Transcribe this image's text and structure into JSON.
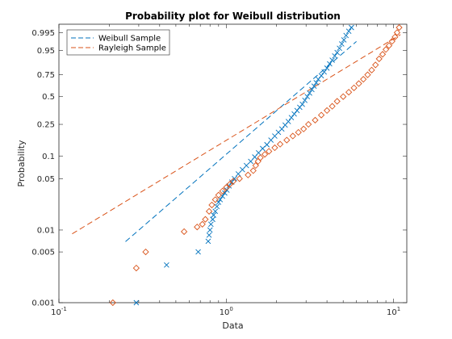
{
  "chart_data": {
    "type": "scatter",
    "title": "Probability plot for Weibull distribution",
    "xlabel": "Data",
    "ylabel": "Probability",
    "x_scale": "log",
    "y_scale": "weibull-probability",
    "xlim": [
      0.1,
      12
    ],
    "ylim": [
      0.001,
      0.999
    ],
    "x_ticks": [
      {
        "value": 0.1,
        "base": "10",
        "exp": "-1"
      },
      {
        "value": 1,
        "base": "10",
        "exp": "0"
      },
      {
        "value": 10,
        "base": "10",
        "exp": "1"
      }
    ],
    "y_ticks": [
      {
        "value": 0.001,
        "label": "0.001"
      },
      {
        "value": 0.005,
        "label": "0.005"
      },
      {
        "value": 0.01,
        "label": "0.01"
      },
      {
        "value": 0.05,
        "label": "0.05"
      },
      {
        "value": 0.1,
        "label": "0.1"
      },
      {
        "value": 0.25,
        "label": "0.25"
      },
      {
        "value": 0.5,
        "label": "0.5"
      },
      {
        "value": 0.75,
        "label": "0.75"
      },
      {
        "value": 0.95,
        "label": "0.95"
      },
      {
        "value": 0.995,
        "label": "0.995"
      }
    ],
    "legend_position": "top-left",
    "grid": false,
    "series": [
      {
        "name": "Weibull Sample",
        "color": "#0072BD",
        "marker": "x",
        "fit_line": {
          "scale": 3.0,
          "shape": 2.0,
          "x_range": [
            0.25,
            6.0
          ]
        },
        "points": [
          [
            0.29,
            0.001
          ],
          [
            0.44,
            0.0033
          ],
          [
            0.68,
            0.005
          ],
          [
            0.78,
            0.007
          ],
          [
            0.79,
            0.0085
          ],
          [
            0.8,
            0.01
          ],
          [
            0.81,
            0.012
          ],
          [
            0.83,
            0.014
          ],
          [
            0.84,
            0.016
          ],
          [
            0.86,
            0.018
          ],
          [
            0.88,
            0.021
          ],
          [
            0.9,
            0.024
          ],
          [
            0.92,
            0.026
          ],
          [
            0.95,
            0.029
          ],
          [
            0.98,
            0.032
          ],
          [
            1.01,
            0.035
          ],
          [
            1.04,
            0.04
          ],
          [
            1.08,
            0.045
          ],
          [
            1.12,
            0.05
          ],
          [
            1.18,
            0.058
          ],
          [
            1.25,
            0.066
          ],
          [
            1.32,
            0.075
          ],
          [
            1.4,
            0.085
          ],
          [
            1.48,
            0.097
          ],
          [
            1.56,
            0.11
          ],
          [
            1.65,
            0.125
          ],
          [
            1.75,
            0.14
          ],
          [
            1.85,
            0.16
          ],
          [
            1.95,
            0.18
          ],
          [
            2.05,
            0.2
          ],
          [
            2.15,
            0.22
          ],
          [
            2.25,
            0.245
          ],
          [
            2.35,
            0.27
          ],
          [
            2.45,
            0.3
          ],
          [
            2.55,
            0.33
          ],
          [
            2.65,
            0.36
          ],
          [
            2.75,
            0.39
          ],
          [
            2.85,
            0.42
          ],
          [
            2.95,
            0.46
          ],
          [
            3.05,
            0.5
          ],
          [
            3.15,
            0.54
          ],
          [
            3.25,
            0.58
          ],
          [
            3.35,
            0.62
          ],
          [
            3.45,
            0.66
          ],
          [
            3.55,
            0.7
          ],
          [
            3.7,
            0.74
          ],
          [
            3.85,
            0.78
          ],
          [
            4.0,
            0.82
          ],
          [
            4.15,
            0.86
          ],
          [
            4.3,
            0.89
          ],
          [
            4.45,
            0.92
          ],
          [
            4.6,
            0.94
          ],
          [
            4.75,
            0.96
          ],
          [
            4.9,
            0.975
          ],
          [
            5.05,
            0.985
          ],
          [
            5.2,
            0.992
          ],
          [
            5.4,
            0.996
          ],
          [
            5.6,
            0.998
          ]
        ]
      },
      {
        "name": "Rayleigh Sample",
        "color": "#D95319",
        "marker": "diamond",
        "fit_line": {
          "scale": 3.5,
          "shape": 1.4,
          "x_range": [
            0.12,
            11.0
          ]
        },
        "points": [
          [
            0.21,
            0.001
          ],
          [
            0.29,
            0.003
          ],
          [
            0.33,
            0.005
          ],
          [
            0.56,
            0.0095
          ],
          [
            0.67,
            0.011
          ],
          [
            0.72,
            0.012
          ],
          [
            0.75,
            0.014
          ],
          [
            0.79,
            0.018
          ],
          [
            0.82,
            0.022
          ],
          [
            0.86,
            0.026
          ],
          [
            0.9,
            0.03
          ],
          [
            0.95,
            0.034
          ],
          [
            1.0,
            0.038
          ],
          [
            1.05,
            0.042
          ],
          [
            1.1,
            0.046
          ],
          [
            1.2,
            0.05
          ],
          [
            1.35,
            0.056
          ],
          [
            1.45,
            0.064
          ],
          [
            1.5,
            0.075
          ],
          [
            1.55,
            0.085
          ],
          [
            1.6,
            0.095
          ],
          [
            1.7,
            0.105
          ],
          [
            1.8,
            0.115
          ],
          [
            1.95,
            0.128
          ],
          [
            2.1,
            0.142
          ],
          [
            2.3,
            0.16
          ],
          [
            2.5,
            0.18
          ],
          [
            2.7,
            0.2
          ],
          [
            2.9,
            0.22
          ],
          [
            3.1,
            0.25
          ],
          [
            3.4,
            0.28
          ],
          [
            3.7,
            0.32
          ],
          [
            4.0,
            0.36
          ],
          [
            4.3,
            0.4
          ],
          [
            4.6,
            0.45
          ],
          [
            5.0,
            0.5
          ],
          [
            5.4,
            0.55
          ],
          [
            5.8,
            0.6
          ],
          [
            6.2,
            0.65
          ],
          [
            6.6,
            0.7
          ],
          [
            7.0,
            0.75
          ],
          [
            7.4,
            0.8
          ],
          [
            7.8,
            0.85
          ],
          [
            8.2,
            0.9
          ],
          [
            8.6,
            0.93
          ],
          [
            9.0,
            0.955
          ],
          [
            9.4,
            0.97
          ],
          [
            9.8,
            0.982
          ],
          [
            10.2,
            0.99
          ],
          [
            10.5,
            0.995
          ],
          [
            10.8,
            0.998
          ]
        ]
      }
    ]
  }
}
